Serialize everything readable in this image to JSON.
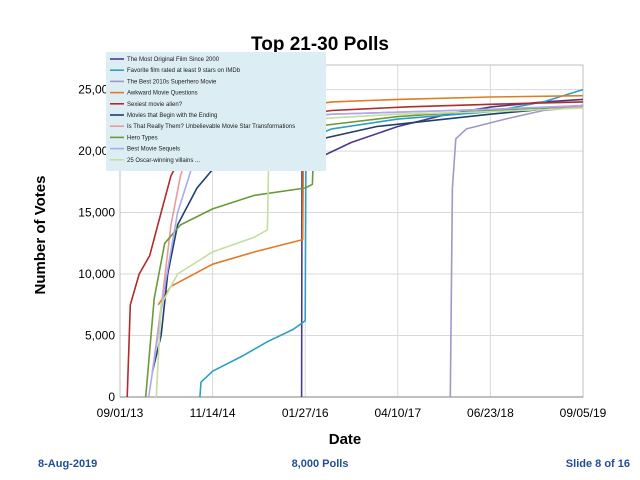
{
  "footer": {
    "date": "8-Aug-2019",
    "center": "8,000 Polls",
    "slide": "Slide 8 of 16"
  },
  "chart_data": {
    "type": "line",
    "title": "Top 21-30 Polls",
    "xlabel": "Date",
    "ylabel": "Number of Votes",
    "x_ticks": [
      "09/01/13",
      "11/14/14",
      "01/27/16",
      "04/10/17",
      "06/23/18",
      "09/05/19"
    ],
    "y_ticks": [
      "0",
      "5,000",
      "10,000",
      "15,000",
      "20,000",
      "25,000"
    ],
    "xlim": [
      "2013-09-01",
      "2019-09-05"
    ],
    "ylim": [
      0,
      27000
    ],
    "grid": true,
    "legend_position": "top-left",
    "series": [
      {
        "name": "The Most Original Film Since 2000",
        "color": "#4b3a8c",
        "points": [
          [
            "2016-01-10",
            0
          ],
          [
            "2016-01-12",
            18500
          ],
          [
            "2016-03-01",
            19200
          ],
          [
            "2016-09-01",
            20700
          ],
          [
            "2017-04-10",
            22000
          ],
          [
            "2017-12-01",
            23000
          ],
          [
            "2018-07-01",
            23600
          ],
          [
            "2019-03-01",
            24000
          ],
          [
            "2019-09-05",
            24200
          ]
        ]
      },
      {
        "name": "Favorite film rated at least 9 stars on IMDb",
        "color": "#2e9ec7",
        "points": [
          [
            "2014-09-15",
            0
          ],
          [
            "2014-09-20",
            1200
          ],
          [
            "2014-11-14",
            2100
          ],
          [
            "2015-04-01",
            3300
          ],
          [
            "2015-08-01",
            4500
          ],
          [
            "2015-12-01",
            5500
          ],
          [
            "2016-01-27",
            6200
          ],
          [
            "2016-01-31",
            21000
          ],
          [
            "2016-06-01",
            21800
          ],
          [
            "2017-04-10",
            22600
          ],
          [
            "2018-06-23",
            23200
          ],
          [
            "2019-03-01",
            24000
          ],
          [
            "2019-09-05",
            25000
          ]
        ]
      },
      {
        "name": "The Best 2010s Superhero Movie",
        "color": "#9e9ac8",
        "points": [
          [
            "2017-12-15",
            0
          ],
          [
            "2017-12-25",
            17000
          ],
          [
            "2018-01-10",
            21000
          ],
          [
            "2018-03-01",
            21800
          ],
          [
            "2018-09-01",
            22600
          ],
          [
            "2019-03-01",
            23300
          ],
          [
            "2019-09-05",
            23600
          ]
        ]
      },
      {
        "name": "Awkward Movie Questions",
        "color": "#e07b22",
        "points": [
          [
            "2014-03-01",
            7500
          ],
          [
            "2014-05-01",
            9000
          ],
          [
            "2014-11-14",
            10800
          ],
          [
            "2015-06-01",
            11800
          ],
          [
            "2016-01-15",
            12800
          ],
          [
            "2016-01-20",
            23700
          ],
          [
            "2016-06-01",
            24000
          ],
          [
            "2017-04-10",
            24200
          ],
          [
            "2018-06-23",
            24400
          ],
          [
            "2019-09-05",
            24500
          ]
        ]
      },
      {
        "name": "Sexiest movie alien?",
        "color": "#b22a2a",
        "points": [
          [
            "2013-10-05",
            0
          ],
          [
            "2013-10-20",
            7500
          ],
          [
            "2013-12-01",
            10000
          ],
          [
            "2014-01-20",
            11500
          ],
          [
            "2014-03-15",
            15000
          ],
          [
            "2014-05-01",
            18000
          ],
          [
            "2014-07-01",
            20000
          ],
          [
            "2014-11-14",
            21500
          ],
          [
            "2015-06-01",
            22500
          ],
          [
            "2016-06-01",
            23300
          ],
          [
            "2017-06-01",
            23600
          ],
          [
            "2018-06-23",
            23800
          ],
          [
            "2019-09-05",
            24000
          ]
        ]
      },
      {
        "name": "Movies that Begin with the Ending",
        "color": "#1f3f6e",
        "points": [
          [
            "2014-02-01",
            2000
          ],
          [
            "2014-03-15",
            5000
          ],
          [
            "2014-04-15",
            10000
          ],
          [
            "2014-06-01",
            14000
          ],
          [
            "2014-09-01",
            17000
          ],
          [
            "2014-11-14",
            18500
          ],
          [
            "2015-06-01",
            19700
          ],
          [
            "2016-01-27",
            20700
          ],
          [
            "2017-01-01",
            22000
          ],
          [
            "2018-06-23",
            23000
          ],
          [
            "2019-09-05",
            23700
          ]
        ]
      },
      {
        "name": "Is That Really Them? Unbelievable Movie Star Transformations",
        "color": "#ee9999",
        "points": [
          [
            "2014-02-01",
            2000
          ],
          [
            "2014-03-20",
            8000
          ],
          [
            "2014-05-01",
            14000
          ],
          [
            "2014-06-15",
            18000
          ],
          [
            "2014-08-01",
            20500
          ],
          [
            "2014-11-14",
            21700
          ],
          [
            "2015-06-01",
            22500
          ],
          [
            "2016-06-01",
            23000
          ],
          [
            "2018-06-23",
            23400
          ],
          [
            "2019-09-05",
            23600
          ]
        ]
      },
      {
        "name": "Hero Types",
        "color": "#6a9a3a",
        "points": [
          [
            "2014-01-01",
            0
          ],
          [
            "2014-02-10",
            8000
          ],
          [
            "2014-04-01",
            12500
          ],
          [
            "2014-06-15",
            14000
          ],
          [
            "2014-11-14",
            15300
          ],
          [
            "2015-06-01",
            16400
          ],
          [
            "2016-01-27",
            17000
          ],
          [
            "2016-03-01",
            17300
          ],
          [
            "2016-03-10",
            22000
          ],
          [
            "2017-04-10",
            22800
          ],
          [
            "2018-06-23",
            23300
          ],
          [
            "2019-09-05",
            23700
          ]
        ]
      },
      {
        "name": "Best Movie Sequels",
        "color": "#aaaaee",
        "points": [
          [
            "2014-01-15",
            0
          ],
          [
            "2014-02-15",
            3500
          ],
          [
            "2014-04-01",
            9000
          ],
          [
            "2014-06-01",
            15000
          ],
          [
            "2014-09-01",
            20000
          ],
          [
            "2014-11-14",
            21600
          ],
          [
            "2015-06-01",
            22400
          ],
          [
            "2016-06-01",
            23000
          ],
          [
            "2018-06-23",
            23400
          ],
          [
            "2019-09-05",
            23700
          ]
        ]
      },
      {
        "name": "25 Oscar-winning villains ...",
        "color": "#c3de9e",
        "points": [
          [
            "2014-02-20",
            0
          ],
          [
            "2014-03-15",
            7500
          ],
          [
            "2014-06-01",
            10000
          ],
          [
            "2014-11-14",
            11800
          ],
          [
            "2015-06-01",
            13000
          ],
          [
            "2015-08-01",
            13600
          ],
          [
            "2015-08-10",
            22300
          ],
          [
            "2016-06-01",
            22700
          ],
          [
            "2017-04-10",
            23000
          ],
          [
            "2018-06-23",
            23200
          ],
          [
            "2019-09-05",
            23500
          ]
        ]
      }
    ]
  }
}
